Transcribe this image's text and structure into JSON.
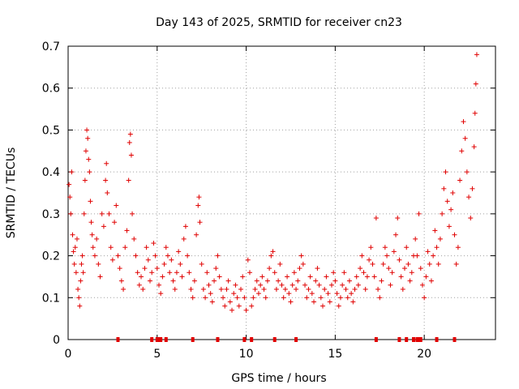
{
  "chart_data": {
    "type": "scatter",
    "title": "Day 143 of 2025, SRMTID for receiver cn23",
    "xlabel": "GPS time / hours",
    "ylabel": "SRMTID / TECUs",
    "xlim": [
      0,
      24
    ],
    "ylim": [
      0,
      0.7
    ],
    "grid": true,
    "x_ticks": [
      0,
      5,
      10,
      15,
      20
    ],
    "y_ticks": [
      0,
      0.1,
      0.2,
      0.3,
      0.4,
      0.5,
      0.6,
      0.7
    ],
    "x_tick_labels": [
      "0",
      "5",
      "10",
      "15",
      "20"
    ],
    "y_tick_labels": [
      "0",
      "0.1",
      "0.2",
      "0.3",
      "0.4",
      "0.5",
      "0.6",
      "0.7"
    ],
    "series": [
      {
        "name": "SRMTID",
        "color": "#e00000",
        "marker": "plus",
        "points": [
          [
            0.05,
            0.37
          ],
          [
            0.1,
            0.34
          ],
          [
            0.15,
            0.3
          ],
          [
            0.2,
            0.4
          ],
          [
            0.25,
            0.25
          ],
          [
            0.3,
            0.21
          ],
          [
            0.35,
            0.18
          ],
          [
            0.4,
            0.22
          ],
          [
            0.45,
            0.16
          ],
          [
            0.5,
            0.24
          ],
          [
            0.55,
            0.12
          ],
          [
            0.6,
            0.1
          ],
          [
            0.65,
            0.08
          ],
          [
            0.7,
            0.14
          ],
          [
            0.75,
            0.18
          ],
          [
            0.8,
            0.2
          ],
          [
            0.85,
            0.16
          ],
          [
            0.9,
            0.3
          ],
          [
            0.95,
            0.38
          ],
          [
            1.0,
            0.45
          ],
          [
            1.05,
            0.5
          ],
          [
            1.1,
            0.48
          ],
          [
            1.15,
            0.43
          ],
          [
            1.2,
            0.4
          ],
          [
            1.25,
            0.33
          ],
          [
            1.3,
            0.28
          ],
          [
            1.35,
            0.25
          ],
          [
            1.4,
            0.22
          ],
          [
            1.5,
            0.2
          ],
          [
            1.6,
            0.24
          ],
          [
            1.7,
            0.18
          ],
          [
            1.8,
            0.15
          ],
          [
            1.9,
            0.3
          ],
          [
            2.0,
            0.27
          ],
          [
            2.1,
            0.38
          ],
          [
            2.15,
            0.42
          ],
          [
            2.2,
            0.35
          ],
          [
            2.3,
            0.3
          ],
          [
            2.4,
            0.22
          ],
          [
            2.5,
            0.19
          ],
          [
            2.6,
            0.28
          ],
          [
            2.7,
            0.32
          ],
          [
            2.8,
            0.2
          ],
          [
            2.9,
            0.17
          ],
          [
            3.0,
            0.14
          ],
          [
            3.1,
            0.12
          ],
          [
            3.2,
            0.22
          ],
          [
            3.3,
            0.26
          ],
          [
            3.4,
            0.38
          ],
          [
            3.45,
            0.47
          ],
          [
            3.5,
            0.49
          ],
          [
            3.55,
            0.44
          ],
          [
            3.6,
            0.3
          ],
          [
            3.7,
            0.24
          ],
          [
            3.8,
            0.2
          ],
          [
            3.9,
            0.16
          ],
          [
            4.0,
            0.13
          ],
          [
            4.1,
            0.15
          ],
          [
            4.2,
            0.12
          ],
          [
            4.3,
            0.17
          ],
          [
            4.4,
            0.22
          ],
          [
            4.5,
            0.19
          ],
          [
            4.6,
            0.14
          ],
          [
            4.7,
            0.16
          ],
          [
            4.8,
            0.23
          ],
          [
            4.9,
            0.2
          ],
          [
            5.0,
            0.17
          ],
          [
            5.1,
            0.13
          ],
          [
            5.2,
            0.11
          ],
          [
            5.3,
            0.15
          ],
          [
            5.4,
            0.18
          ],
          [
            5.5,
            0.22
          ],
          [
            5.6,
            0.2
          ],
          [
            5.7,
            0.16
          ],
          [
            5.8,
            0.19
          ],
          [
            5.9,
            0.14
          ],
          [
            6.0,
            0.12
          ],
          [
            6.1,
            0.16
          ],
          [
            6.2,
            0.21
          ],
          [
            6.3,
            0.18
          ],
          [
            6.4,
            0.15
          ],
          [
            6.5,
            0.24
          ],
          [
            6.6,
            0.27
          ],
          [
            6.7,
            0.2
          ],
          [
            6.8,
            0.16
          ],
          [
            6.9,
            0.12
          ],
          [
            7.0,
            0.1
          ],
          [
            7.1,
            0.14
          ],
          [
            7.2,
            0.25
          ],
          [
            7.3,
            0.32
          ],
          [
            7.35,
            0.34
          ],
          [
            7.4,
            0.28
          ],
          [
            7.5,
            0.18
          ],
          [
            7.6,
            0.12
          ],
          [
            7.7,
            0.1
          ],
          [
            7.8,
            0.16
          ],
          [
            7.9,
            0.13
          ],
          [
            8.0,
            0.11
          ],
          [
            8.1,
            0.09
          ],
          [
            8.2,
            0.14
          ],
          [
            8.3,
            0.17
          ],
          [
            8.4,
            0.2
          ],
          [
            8.5,
            0.15
          ],
          [
            8.6,
            0.12
          ],
          [
            8.7,
            0.1
          ],
          [
            8.8,
            0.08
          ],
          [
            8.9,
            0.12
          ],
          [
            9.0,
            0.14
          ],
          [
            9.1,
            0.09
          ],
          [
            9.2,
            0.07
          ],
          [
            9.3,
            0.11
          ],
          [
            9.4,
            0.13
          ],
          [
            9.5,
            0.1
          ],
          [
            9.6,
            0.08
          ],
          [
            9.7,
            0.12
          ],
          [
            9.8,
            0.15
          ],
          [
            9.9,
            0.1
          ],
          [
            10.0,
            0.07
          ],
          [
            10.1,
            0.19
          ],
          [
            10.2,
            0.16
          ],
          [
            10.3,
            0.08
          ],
          [
            10.4,
            0.1
          ],
          [
            10.5,
            0.12
          ],
          [
            10.6,
            0.14
          ],
          [
            10.7,
            0.11
          ],
          [
            10.8,
            0.13
          ],
          [
            10.9,
            0.15
          ],
          [
            11.0,
            0.12
          ],
          [
            11.1,
            0.1
          ],
          [
            11.2,
            0.14
          ],
          [
            11.3,
            0.17
          ],
          [
            11.4,
            0.2
          ],
          [
            11.5,
            0.21
          ],
          [
            11.6,
            0.16
          ],
          [
            11.7,
            0.12
          ],
          [
            11.8,
            0.14
          ],
          [
            11.9,
            0.18
          ],
          [
            12.0,
            0.13
          ],
          [
            12.1,
            0.1
          ],
          [
            12.2,
            0.12
          ],
          [
            12.3,
            0.15
          ],
          [
            12.4,
            0.11
          ],
          [
            12.5,
            0.09
          ],
          [
            12.6,
            0.13
          ],
          [
            12.7,
            0.16
          ],
          [
            12.8,
            0.12
          ],
          [
            12.9,
            0.14
          ],
          [
            13.0,
            0.17
          ],
          [
            13.1,
            0.2
          ],
          [
            13.2,
            0.18
          ],
          [
            13.3,
            0.13
          ],
          [
            13.4,
            0.1
          ],
          [
            13.5,
            0.12
          ],
          [
            13.6,
            0.15
          ],
          [
            13.7,
            0.11
          ],
          [
            13.8,
            0.09
          ],
          [
            13.9,
            0.14
          ],
          [
            14.0,
            0.17
          ],
          [
            14.1,
            0.13
          ],
          [
            14.2,
            0.1
          ],
          [
            14.3,
            0.08
          ],
          [
            14.4,
            0.12
          ],
          [
            14.5,
            0.15
          ],
          [
            14.6,
            0.11
          ],
          [
            14.7,
            0.09
          ],
          [
            14.8,
            0.13
          ],
          [
            14.9,
            0.16
          ],
          [
            15.0,
            0.14
          ],
          [
            15.1,
            0.11
          ],
          [
            15.2,
            0.08
          ],
          [
            15.3,
            0.1
          ],
          [
            15.4,
            0.13
          ],
          [
            15.5,
            0.16
          ],
          [
            15.6,
            0.12
          ],
          [
            15.7,
            0.1
          ],
          [
            15.8,
            0.14
          ],
          [
            15.9,
            0.11
          ],
          [
            16.0,
            0.09
          ],
          [
            16.1,
            0.12
          ],
          [
            16.2,
            0.15
          ],
          [
            16.3,
            0.13
          ],
          [
            16.4,
            0.17
          ],
          [
            16.5,
            0.2
          ],
          [
            16.6,
            0.16
          ],
          [
            16.7,
            0.12
          ],
          [
            16.8,
            0.15
          ],
          [
            16.9,
            0.19
          ],
          [
            17.0,
            0.22
          ],
          [
            17.1,
            0.18
          ],
          [
            17.2,
            0.15
          ],
          [
            17.3,
            0.29
          ],
          [
            17.4,
            0.12
          ],
          [
            17.5,
            0.1
          ],
          [
            17.6,
            0.14
          ],
          [
            17.7,
            0.18
          ],
          [
            17.8,
            0.22
          ],
          [
            17.9,
            0.2
          ],
          [
            18.0,
            0.17
          ],
          [
            18.1,
            0.13
          ],
          [
            18.2,
            0.16
          ],
          [
            18.3,
            0.21
          ],
          [
            18.4,
            0.25
          ],
          [
            18.5,
            0.29
          ],
          [
            18.6,
            0.19
          ],
          [
            18.7,
            0.15
          ],
          [
            18.8,
            0.12
          ],
          [
            18.9,
            0.17
          ],
          [
            19.0,
            0.22
          ],
          [
            19.1,
            0.18
          ],
          [
            19.2,
            0.14
          ],
          [
            19.3,
            0.16
          ],
          [
            19.4,
            0.2
          ],
          [
            19.5,
            0.24
          ],
          [
            19.6,
            0.2
          ],
          [
            19.7,
            0.3
          ],
          [
            19.8,
            0.17
          ],
          [
            19.9,
            0.13
          ],
          [
            20.0,
            0.1
          ],
          [
            20.1,
            0.15
          ],
          [
            20.2,
            0.21
          ],
          [
            20.3,
            0.18
          ],
          [
            20.4,
            0.14
          ],
          [
            20.5,
            0.2
          ],
          [
            20.6,
            0.26
          ],
          [
            20.7,
            0.22
          ],
          [
            20.8,
            0.18
          ],
          [
            20.9,
            0.24
          ],
          [
            21.0,
            0.3
          ],
          [
            21.1,
            0.36
          ],
          [
            21.2,
            0.4
          ],
          [
            21.3,
            0.33
          ],
          [
            21.4,
            0.27
          ],
          [
            21.5,
            0.31
          ],
          [
            21.6,
            0.35
          ],
          [
            21.7,
            0.25
          ],
          [
            21.8,
            0.18
          ],
          [
            21.9,
            0.22
          ],
          [
            22.0,
            0.38
          ],
          [
            22.1,
            0.45
          ],
          [
            22.2,
            0.52
          ],
          [
            22.3,
            0.48
          ],
          [
            22.4,
            0.4
          ],
          [
            22.5,
            0.34
          ],
          [
            22.6,
            0.29
          ],
          [
            22.7,
            0.36
          ],
          [
            22.8,
            0.46
          ],
          [
            22.85,
            0.54
          ],
          [
            22.9,
            0.61
          ],
          [
            22.95,
            0.68
          ]
        ]
      }
    ],
    "baseline_markers_x": [
      2.8,
      4.7,
      5.0,
      5.1,
      5.2,
      5.5,
      7.0,
      8.4,
      9.9,
      10.3,
      11.6,
      12.8,
      17.3,
      18.6,
      19.0,
      19.4,
      19.6,
      19.7,
      19.8,
      20.7,
      21.7
    ]
  }
}
